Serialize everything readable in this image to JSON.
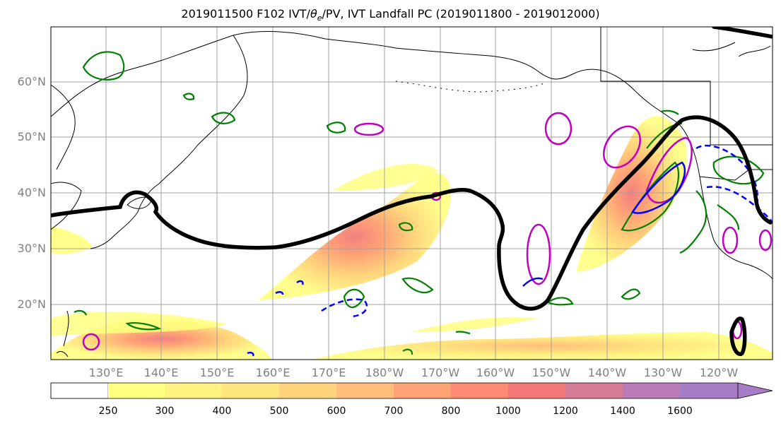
{
  "title": {
    "prefix": "2019011500 F102 IVT/",
    "theta_symbol": "θ",
    "theta_subscript": "e",
    "suffix": "/PV, IVT Landfall PC (2019011800 - 2019012000)"
  },
  "map": {
    "region": "North Pacific",
    "lat_labels": [
      "60°N",
      "50°N",
      "40°N",
      "30°N",
      "20°N"
    ],
    "lon_labels": [
      "130°E",
      "140°E",
      "150°E",
      "160°E",
      "170°E",
      "180°W",
      "170°W",
      "160°W",
      "150°W",
      "140°W",
      "130°W",
      "120°W"
    ],
    "gridlines": true,
    "land_outline_color": "#000000",
    "contour_colors": {
      "pv": "#000000",
      "theta_e_positive": "#008000",
      "theta_e_negative": "#0000ff",
      "ivt_anomaly": "#c000c0"
    }
  },
  "colorbar": {
    "levels": [
      "250",
      "300",
      "400",
      "500",
      "600",
      "700",
      "800",
      "1000",
      "1200",
      "1400",
      "1600"
    ],
    "colors": [
      "#ffff80",
      "#fff280",
      "#ffe57e",
      "#ffd27c",
      "#ffbe7a",
      "#ffa376",
      "#ff8a72",
      "#f27878",
      "#d67c96",
      "#ba7cb8",
      "#a67cc6"
    ],
    "extend": "max"
  }
}
